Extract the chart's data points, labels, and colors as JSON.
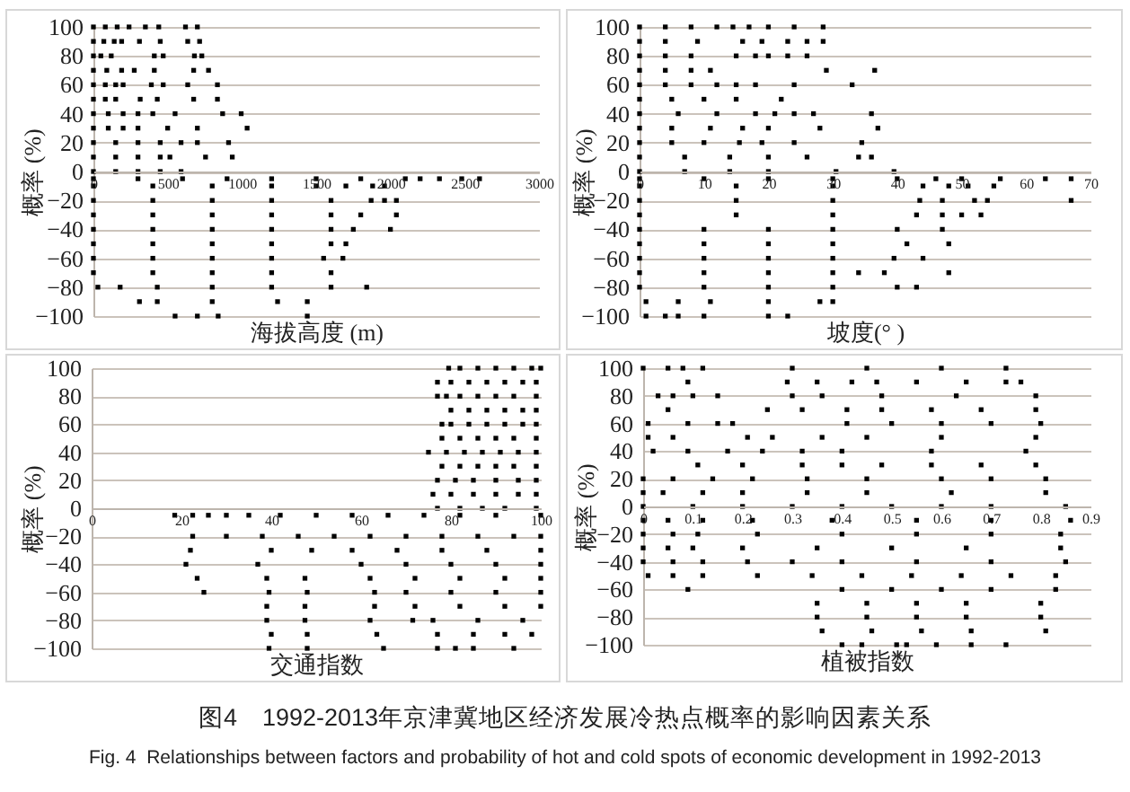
{
  "chart_data": [
    {
      "type": "scatter",
      "xlabel": "海拔高度 (m)",
      "ylabel": "概率 (%)",
      "xlim": [
        0,
        3000
      ],
      "xticks": [
        0,
        500,
        1000,
        1500,
        2000,
        2500,
        3000
      ],
      "ylim": [
        -100,
        100
      ],
      "yticks": [
        -100,
        -80,
        -60,
        -40,
        -20,
        0,
        20,
        40,
        60,
        80,
        100
      ],
      "grid": "y",
      "marker": "square",
      "series": [
        {
          "color": "#000000",
          "x": [
            0,
            80,
            160,
            240,
            350,
            440,
            620,
            700,
            0,
            70,
            140,
            190,
            310,
            450,
            635,
            715,
            0,
            50,
            120,
            410,
            470,
            680,
            730,
            0,
            90,
            190,
            275,
            410,
            675,
            775,
            0,
            80,
            150,
            200,
            390,
            470,
            635,
            835,
            0,
            80,
            150,
            315,
            430,
            675,
            835,
            0,
            100,
            200,
            300,
            400,
            550,
            870,
            995,
            0,
            100,
            200,
            300,
            500,
            700,
            1035,
            0,
            150,
            300,
            450,
            590,
            700,
            910,
            0,
            150,
            300,
            450,
            515,
            755,
            935,
            0,
            150,
            300,
            450,
            590,
            0,
            300,
            600,
            900,
            1200,
            1500,
            1800,
            2100,
            2200,
            2330,
            2480,
            2600,
            0,
            400,
            800,
            1200,
            1500,
            1700,
            1880,
            1960,
            0,
            400,
            800,
            1200,
            1600,
            1870,
            1960,
            2040,
            0,
            400,
            800,
            1200,
            1600,
            1800,
            2040,
            0,
            400,
            800,
            1200,
            1600,
            1750,
            2000,
            0,
            400,
            800,
            1200,
            1600,
            1700,
            0,
            400,
            800,
            1200,
            1550,
            1680,
            0,
            400,
            800,
            1200,
            1600,
            30,
            180,
            430,
            800,
            1200,
            1600,
            1840,
            310,
            430,
            800,
            1240,
            1440,
            550,
            700,
            840,
            1440
          ],
          "values": [
            100,
            100,
            100,
            100,
            100,
            100,
            100,
            100,
            90,
            90,
            90,
            90,
            90,
            90,
            90,
            90,
            80,
            80,
            80,
            80,
            80,
            80,
            80,
            70,
            70,
            70,
            70,
            70,
            70,
            70,
            60,
            60,
            60,
            60,
            60,
            60,
            60,
            60,
            50,
            50,
            50,
            50,
            50,
            50,
            50,
            40,
            40,
            40,
            40,
            40,
            40,
            40,
            40,
            30,
            30,
            30,
            30,
            30,
            30,
            30,
            20,
            20,
            20,
            20,
            20,
            20,
            20,
            10,
            10,
            10,
            10,
            10,
            10,
            10,
            0,
            0,
            0,
            0,
            0,
            -5,
            -5,
            -5,
            -5,
            -5,
            -5,
            -5,
            -5,
            -5,
            -5,
            -5,
            -5,
            -10,
            -10,
            -10,
            -10,
            -10,
            -10,
            -10,
            -10,
            -20,
            -20,
            -20,
            -20,
            -20,
            -20,
            -20,
            -20,
            -30,
            -30,
            -30,
            -30,
            -30,
            -30,
            -30,
            -40,
            -40,
            -40,
            -40,
            -40,
            -40,
            -40,
            -50,
            -50,
            -50,
            -50,
            -50,
            -50,
            -60,
            -60,
            -60,
            -60,
            -60,
            -60,
            -70,
            -70,
            -70,
            -70,
            -70,
            -80,
            -80,
            -80,
            -80,
            -80,
            -80,
            -80,
            -90,
            -90,
            -90,
            -90,
            -90,
            -100,
            -100,
            -100,
            -100
          ]
        }
      ]
    },
    {
      "type": "scatter",
      "xlabel": "坡度(° )",
      "ylabel": "概率 (%)",
      "xlim": [
        0,
        70
      ],
      "xticks": [
        0,
        10,
        20,
        30,
        40,
        50,
        60,
        70
      ],
      "ylim": [
        -100,
        100
      ],
      "yticks": [
        -100,
        -80,
        -60,
        -40,
        -20,
        0,
        20,
        40,
        60,
        80,
        100
      ],
      "grid": "y",
      "marker": "square",
      "series": [
        {
          "color": "#000000",
          "x": [
            0,
            4,
            8,
            12,
            14.5,
            17,
            20,
            24,
            28.5,
            0,
            4,
            9,
            16,
            19,
            23,
            26,
            28.5,
            0,
            4,
            8,
            15,
            18,
            20,
            23,
            26,
            0,
            4,
            8,
            11,
            29,
            36.5,
            0,
            4,
            8,
            12,
            15,
            18,
            24,
            33,
            0,
            5,
            10,
            15,
            22,
            0,
            6,
            12,
            18,
            21,
            24,
            27,
            36,
            0,
            5,
            11,
            16,
            20,
            28,
            37,
            0,
            5,
            10,
            15.5,
            19,
            24,
            34.5,
            0,
            7,
            14,
            20,
            26,
            34,
            36,
            0,
            7,
            14,
            20,
            30.5,
            39.5,
            0,
            10,
            20,
            30,
            40,
            46,
            50,
            56,
            63,
            67,
            0,
            15,
            30,
            44,
            48,
            51,
            55,
            0,
            15,
            30,
            43.5,
            47,
            52,
            54,
            67,
            0,
            15,
            30,
            43,
            47,
            50,
            53,
            0,
            10,
            20,
            30,
            40,
            47,
            0,
            10,
            20,
            30,
            41.5,
            48,
            0,
            10,
            20,
            30,
            39.5,
            44,
            0,
            10,
            20,
            30,
            34,
            38,
            48,
            0,
            10,
            20,
            30,
            40,
            43,
            1,
            6,
            11,
            20,
            28,
            30,
            1,
            4,
            6,
            10,
            20,
            23
          ],
          "values": [
            100,
            100,
            100,
            100,
            100,
            100,
            100,
            100,
            100,
            90,
            90,
            90,
            90,
            90,
            90,
            90,
            90,
            80,
            80,
            80,
            80,
            80,
            80,
            80,
            80,
            70,
            70,
            70,
            70,
            70,
            70,
            60,
            60,
            60,
            60,
            60,
            60,
            60,
            60,
            50,
            50,
            50,
            50,
            50,
            40,
            40,
            40,
            40,
            40,
            40,
            40,
            40,
            30,
            30,
            30,
            30,
            30,
            30,
            30,
            20,
            20,
            20,
            20,
            20,
            20,
            20,
            10,
            10,
            10,
            10,
            10,
            10,
            10,
            0,
            0,
            0,
            0,
            0,
            0,
            -5,
            -5,
            -5,
            -5,
            -5,
            -5,
            -5,
            -5,
            -5,
            -5,
            -10,
            -10,
            -10,
            -10,
            -10,
            -10,
            -10,
            -20,
            -20,
            -20,
            -20,
            -20,
            -20,
            -20,
            -20,
            -30,
            -30,
            -30,
            -30,
            -30,
            -30,
            -30,
            -40,
            -40,
            -40,
            -40,
            -40,
            -40,
            -50,
            -50,
            -50,
            -50,
            -50,
            -50,
            -60,
            -60,
            -60,
            -60,
            -60,
            -60,
            -70,
            -70,
            -70,
            -70,
            -70,
            -70,
            -70,
            -80,
            -80,
            -80,
            -80,
            -80,
            -80,
            -90,
            -90,
            -90,
            -90,
            -90,
            -90,
            -100,
            -100,
            -100,
            -100,
            -100,
            -100
          ]
        }
      ]
    },
    {
      "type": "scatter",
      "xlabel": "交通指数",
      "ylabel": "概率 (%)",
      "xlim": [
        0,
        100
      ],
      "xticks": [
        0,
        20,
        40,
        60,
        80,
        100
      ],
      "ylim": [
        -100,
        100
      ],
      "yticks": [
        -100,
        -80,
        -60,
        -40,
        -20,
        0,
        20,
        40,
        60,
        80,
        100
      ],
      "grid": "y",
      "marker": "square",
      "series": [
        {
          "color": "#000000",
          "x": [
            79.5,
            82,
            86,
            90,
            94,
            98,
            100,
            77,
            80,
            84,
            88,
            92,
            96,
            99,
            77,
            79,
            82,
            86,
            90,
            94,
            99,
            80,
            84,
            88,
            92,
            96,
            99,
            78,
            80,
            84,
            88,
            92,
            96,
            99,
            78,
            82,
            86,
            90,
            94,
            99,
            75,
            79,
            83,
            87,
            91,
            95,
            99,
            78,
            82,
            86,
            90,
            94,
            99,
            77,
            81,
            85,
            90,
            95,
            99,
            76,
            80,
            85,
            90,
            95,
            99,
            77,
            82,
            87,
            92,
            99,
            18.5,
            22.5,
            26,
            30,
            35,
            42,
            50,
            58,
            66,
            74,
            82,
            90,
            100,
            22.5,
            30,
            38,
            46,
            54,
            62,
            70,
            78,
            86,
            94,
            100,
            22,
            40,
            49,
            58,
            68,
            78,
            88,
            100,
            21,
            37,
            60,
            70,
            80,
            90,
            100,
            23.5,
            39,
            47.5,
            62,
            72,
            82,
            92,
            100,
            25,
            39.5,
            48,
            63,
            70,
            80,
            90,
            100,
            39,
            47.5,
            63,
            72,
            82,
            92,
            100,
            39,
            47.5,
            62,
            71.5,
            76,
            86,
            96,
            40,
            48,
            63.5,
            77,
            85,
            92,
            98,
            39.5,
            48,
            65,
            77,
            81,
            85,
            94
          ],
          "values": [
            100,
            100,
            100,
            100,
            100,
            100,
            100,
            90,
            90,
            90,
            90,
            90,
            90,
            90,
            80,
            80,
            80,
            80,
            80,
            80,
            80,
            70,
            70,
            70,
            70,
            70,
            70,
            60,
            60,
            60,
            60,
            60,
            60,
            60,
            50,
            50,
            50,
            50,
            50,
            50,
            40,
            40,
            40,
            40,
            40,
            40,
            40,
            30,
            30,
            30,
            30,
            30,
            30,
            20,
            20,
            20,
            20,
            20,
            20,
            10,
            10,
            10,
            10,
            10,
            10,
            0,
            0,
            0,
            0,
            0,
            -5,
            -5,
            -5,
            -5,
            -5,
            -5,
            -5,
            -5,
            -5,
            -5,
            -5,
            -5,
            -5,
            -20,
            -20,
            -20,
            -20,
            -20,
            -20,
            -20,
            -20,
            -20,
            -20,
            -20,
            -30,
            -30,
            -30,
            -30,
            -30,
            -30,
            -30,
            -30,
            -40,
            -40,
            -40,
            -40,
            -40,
            -40,
            -40,
            -50,
            -50,
            -50,
            -50,
            -50,
            -50,
            -50,
            -50,
            -60,
            -60,
            -60,
            -60,
            -60,
            -60,
            -60,
            -60,
            -70,
            -70,
            -70,
            -70,
            -70,
            -70,
            -70,
            -80,
            -80,
            -80,
            -80,
            -80,
            -80,
            -80,
            -90,
            -90,
            -90,
            -90,
            -90,
            -90,
            -90,
            -100,
            -100,
            -100,
            -100,
            -100,
            -100,
            -100
          ]
        }
      ]
    },
    {
      "type": "scatter",
      "xlabel": "植被指数",
      "ylabel": "概率 (%)",
      "xlim": [
        0,
        0.9
      ],
      "xticks": [
        0,
        0.1,
        0.2,
        0.3,
        0.4,
        0.5,
        0.6,
        0.7,
        0.8,
        0.9
      ],
      "ylim": [
        -100,
        100
      ],
      "yticks": [
        -100,
        -80,
        -60,
        -40,
        -20,
        0,
        20,
        40,
        60,
        80,
        100
      ],
      "grid": "y",
      "marker": "square",
      "series": [
        {
          "color": "#000000",
          "x": [
            0,
            0.05,
            0.08,
            0.12,
            0.3,
            0.45,
            0.6,
            0.73,
            0.09,
            0.29,
            0.35,
            0.42,
            0.47,
            0.55,
            0.65,
            0.73,
            0.76,
            0.03,
            0.06,
            0.1,
            0.15,
            0.3,
            0.36,
            0.48,
            0.63,
            0.79,
            0.05,
            0.25,
            0.32,
            0.41,
            0.48,
            0.58,
            0.68,
            0.79,
            0.01,
            0.09,
            0.15,
            0.18,
            0.41,
            0.5,
            0.6,
            0.7,
            0.8,
            0.01,
            0.06,
            0.21,
            0.26,
            0.36,
            0.45,
            0.6,
            0.79,
            0.02,
            0.09,
            0.17,
            0.24,
            0.32,
            0.4,
            0.58,
            0.77,
            0.11,
            0.2,
            0.32,
            0.4,
            0.48,
            0.58,
            0.68,
            0.79,
            0,
            0.06,
            0.14,
            0.22,
            0.33,
            0.45,
            0.6,
            0.7,
            0.81,
            0,
            0.04,
            0.12,
            0.2,
            0.33,
            0.45,
            0.62,
            0.81,
            0,
            0.1,
            0.2,
            0.3,
            0.4,
            0.5,
            0.6,
            0.7,
            0.85,
            0,
            0.05,
            0.12,
            0.22,
            0.38,
            0.55,
            0.7,
            0.86,
            0,
            0.06,
            0.11,
            0.23,
            0.4,
            0.55,
            0.7,
            0.84,
            0,
            0.05,
            0.1,
            0.2,
            0.35,
            0.5,
            0.65,
            0.84,
            0,
            0.06,
            0.12,
            0.21,
            0.3,
            0.4,
            0.55,
            0.7,
            0.85,
            0.01,
            0.06,
            0.12,
            0.23,
            0.34,
            0.44,
            0.54,
            0.64,
            0.74,
            0.83,
            0.09,
            0.4,
            0.5,
            0.6,
            0.7,
            0.83,
            0.35,
            0.45,
            0.55,
            0.65,
            0.8,
            0.35,
            0.45,
            0.55,
            0.65,
            0.8,
            0.36,
            0.46,
            0.56,
            0.66,
            0.81,
            0.4,
            0.44,
            0.51,
            0.53,
            0.59,
            0.66,
            0.73
          ],
          "values": [
            100,
            100,
            100,
            100,
            100,
            100,
            100,
            100,
            90,
            90,
            90,
            90,
            90,
            90,
            90,
            90,
            90,
            80,
            80,
            80,
            80,
            80,
            80,
            80,
            80,
            80,
            70,
            70,
            70,
            70,
            70,
            70,
            70,
            70,
            60,
            60,
            60,
            60,
            60,
            60,
            60,
            60,
            60,
            50,
            50,
            50,
            50,
            50,
            50,
            50,
            50,
            40,
            40,
            40,
            40,
            40,
            40,
            40,
            40,
            30,
            30,
            30,
            30,
            30,
            30,
            30,
            30,
            20,
            20,
            20,
            20,
            20,
            20,
            20,
            20,
            20,
            10,
            10,
            10,
            10,
            10,
            10,
            10,
            10,
            0,
            0,
            0,
            0,
            0,
            0,
            0,
            0,
            0,
            -10,
            -10,
            -10,
            -10,
            -10,
            -10,
            -10,
            -10,
            -20,
            -20,
            -20,
            -20,
            -20,
            -20,
            -20,
            -20,
            -30,
            -30,
            -30,
            -30,
            -30,
            -30,
            -30,
            -30,
            -40,
            -40,
            -40,
            -40,
            -40,
            -40,
            -40,
            -40,
            -40,
            -50,
            -50,
            -50,
            -50,
            -50,
            -50,
            -50,
            -50,
            -50,
            -50,
            -60,
            -60,
            -60,
            -60,
            -60,
            -60,
            -70,
            -70,
            -70,
            -70,
            -70,
            -80,
            -80,
            -80,
            -80,
            -80,
            -90,
            -90,
            -90,
            -90,
            -90,
            -100,
            -100,
            -100,
            -100,
            -100,
            -100,
            -100
          ]
        }
      ]
    },
    {
      "type": "other",
      "annotations": [
        "图4　1992-2013年京津冀地区经济发展冷热点概率的影响因素关系",
        "Fig. 4  Relationships between factors and probability of hot and cold spots of economic development in 1992-2013"
      ]
    }
  ]
}
